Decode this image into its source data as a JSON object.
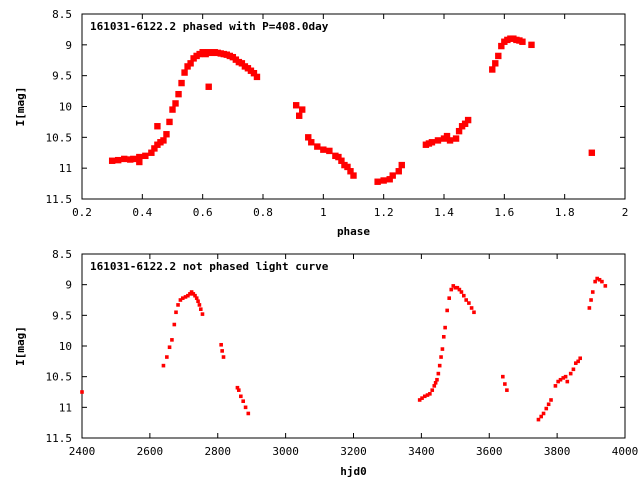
{
  "chart_data": [
    {
      "type": "scatter",
      "title": "161031-6122.2 phased with P=408.0day",
      "xlabel": "phase",
      "ylabel": "I[mag]",
      "xlim": [
        0.2,
        2.0
      ],
      "ylim": [
        8.5,
        11.5
      ],
      "y_inverted": true,
      "x_ticks": [
        "0.2",
        "0.4",
        "0.6",
        "0.8",
        "1",
        "1.2",
        "1.4",
        "1.6",
        "1.8",
        "2"
      ],
      "y_ticks": [
        "8.5",
        "9",
        "9.5",
        "10",
        "10.5",
        "11",
        "11.5"
      ],
      "marker_color": "#ff0000",
      "grid": false,
      "x": [
        0.3,
        0.32,
        0.34,
        0.36,
        0.37,
        0.39,
        0.41,
        0.43,
        0.44,
        0.45,
        0.46,
        0.47,
        0.48,
        0.49,
        0.5,
        0.51,
        0.52,
        0.53,
        0.54,
        0.55,
        0.56,
        0.57,
        0.58,
        0.59,
        0.6,
        0.61,
        0.62,
        0.63,
        0.64,
        0.65,
        0.66,
        0.67,
        0.68,
        0.69,
        0.7,
        0.71,
        0.72,
        0.73,
        0.74,
        0.75,
        0.76,
        0.77,
        0.78,
        0.62,
        0.91,
        0.92,
        0.93,
        0.95,
        0.96,
        0.98,
        1.0,
        1.02,
        1.04,
        1.05,
        1.06,
        1.07,
        1.08,
        1.09,
        1.1,
        1.18,
        1.2,
        1.22,
        1.23,
        1.25,
        1.26,
        1.34,
        1.35,
        1.36,
        1.38,
        1.4,
        1.41,
        1.42,
        1.44,
        1.45,
        1.46,
        1.47,
        1.48,
        1.56,
        1.57,
        1.58,
        1.59,
        1.6,
        1.61,
        1.62,
        1.63,
        1.64,
        1.65,
        1.66,
        1.69,
        1.89,
        0.39,
        0.45
      ],
      "y": [
        10.88,
        10.87,
        10.85,
        10.86,
        10.85,
        10.82,
        10.8,
        10.75,
        10.68,
        10.62,
        10.58,
        10.55,
        10.45,
        10.25,
        10.05,
        9.95,
        9.8,
        9.62,
        9.45,
        9.35,
        9.3,
        9.22,
        9.18,
        9.15,
        9.12,
        9.15,
        9.12,
        9.13,
        9.12,
        9.13,
        9.14,
        9.15,
        9.16,
        9.18,
        9.2,
        9.24,
        9.28,
        9.3,
        9.35,
        9.38,
        9.42,
        9.46,
        9.52,
        9.68,
        9.98,
        10.15,
        10.05,
        10.5,
        10.58,
        10.65,
        10.7,
        10.72,
        10.8,
        10.82,
        10.88,
        10.95,
        10.98,
        11.05,
        11.12,
        11.22,
        11.2,
        11.18,
        11.12,
        11.05,
        10.95,
        10.62,
        10.6,
        10.58,
        10.55,
        10.52,
        10.48,
        10.55,
        10.52,
        10.4,
        10.32,
        10.28,
        10.22,
        9.4,
        9.3,
        9.18,
        9.02,
        8.95,
        8.92,
        8.9,
        8.9,
        8.92,
        8.93,
        8.95,
        9.0,
        10.75,
        10.9,
        10.32
      ]
    },
    {
      "type": "scatter",
      "title": "161031-6122.2 not phased light curve",
      "xlabel": "hjd0",
      "ylabel": "I[mag]",
      "xlim": [
        2400,
        4000
      ],
      "ylim": [
        8.5,
        11.5
      ],
      "y_inverted": true,
      "x_ticks": [
        "2400",
        "2600",
        "2800",
        "3000",
        "3200",
        "3400",
        "3600",
        "3800",
        "4000"
      ],
      "y_ticks": [
        "8.5",
        "9",
        "9.5",
        "10",
        "10.5",
        "11",
        "11.5"
      ],
      "marker_color": "#ff0000",
      "grid": false,
      "x": [
        2400,
        2640,
        2650,
        2658,
        2665,
        2672,
        2677,
        2683,
        2690,
        2697,
        2705,
        2712,
        2718,
        2723,
        2728,
        2733,
        2738,
        2742,
        2746,
        2750,
        2755,
        2810,
        2813,
        2817,
        2858,
        2862,
        2868,
        2875,
        2882,
        2890,
        3395,
        3402,
        3410,
        3418,
        3425,
        3432,
        3438,
        3442,
        3446,
        3450,
        3454,
        3458,
        3462,
        3466,
        3470,
        3476,
        3482,
        3488,
        3494,
        3500,
        3506,
        3512,
        3518,
        3525,
        3532,
        3540,
        3548,
        3555,
        3640,
        3646,
        3652,
        3745,
        3753,
        3760,
        3768,
        3775,
        3782,
        3795,
        3803,
        3810,
        3818,
        3825,
        3830,
        3840,
        3848,
        3855,
        3862,
        3868,
        3895,
        3900,
        3905,
        3912,
        3918,
        3925,
        3932,
        3942
      ],
      "y": [
        10.75,
        10.32,
        10.18,
        10.02,
        9.9,
        9.65,
        9.45,
        9.33,
        9.25,
        9.22,
        9.2,
        9.18,
        9.15,
        9.12,
        9.15,
        9.18,
        9.22,
        9.27,
        9.33,
        9.4,
        9.48,
        9.98,
        10.08,
        10.18,
        10.68,
        10.72,
        10.82,
        10.9,
        11.0,
        11.1,
        10.88,
        10.85,
        10.82,
        10.8,
        10.78,
        10.72,
        10.65,
        10.6,
        10.55,
        10.45,
        10.32,
        10.18,
        10.05,
        9.85,
        9.7,
        9.42,
        9.22,
        9.08,
        9.02,
        9.05,
        9.05,
        9.08,
        9.12,
        9.18,
        9.25,
        9.3,
        9.38,
        9.45,
        10.5,
        10.62,
        10.72,
        11.2,
        11.15,
        11.1,
        11.02,
        10.95,
        10.88,
        10.65,
        10.58,
        10.55,
        10.52,
        10.5,
        10.58,
        10.45,
        10.38,
        10.28,
        10.25,
        10.2,
        9.38,
        9.25,
        9.12,
        8.95,
        8.9,
        8.92,
        8.95,
        9.02
      ]
    }
  ]
}
